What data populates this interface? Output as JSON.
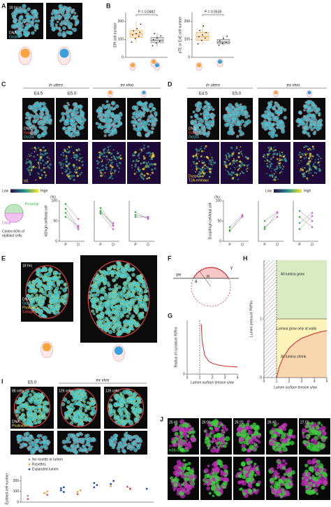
{
  "panels": {
    "A": {
      "label": "A",
      "time": "18 hrs",
      "stains": [
        "DNA",
        "Oct3/4"
      ]
    },
    "B": {
      "label": "B"
    },
    "C": {
      "label": "C",
      "groups": [
        "in utero",
        "ex vivo"
      ],
      "stages": [
        "E4.5",
        "E5.0"
      ],
      "stains": [
        "DNA",
        "Gata4",
        "Oct3/4"
      ],
      "reporter": [
        "Id1"
      ],
      "scale": [
        "Low",
        "High"
      ],
      "schematic": [
        "Proximal",
        "Distal",
        "Centre 60% of",
        "epiblast cells"
      ]
    },
    "D": {
      "label": "D",
      "groups": [
        "in utero",
        "ex vivo"
      ],
      "stages": [
        "E4.5",
        "E5.0"
      ],
      "stains": [
        "DNA",
        "Gata4",
        "Oct3/4"
      ],
      "reporter": [
        "Dusp4-",
        "T2A-mVenus"
      ],
      "scale": [
        "Low",
        "High"
      ]
    },
    "E": {
      "label": "E",
      "time": "18 hrs",
      "stains": [
        "DNA",
        "Oct3/4",
        "Phalloidin",
        "Collagen IV"
      ]
    },
    "F": {
      "label": "F",
      "symbols": [
        "γ",
        "γw",
        "θ",
        "R"
      ]
    },
    "G": {
      "label": "G"
    },
    "H": {
      "label": "H"
    },
    "I": {
      "label": "I",
      "stage": "E5.0",
      "group": "ex vivo",
      "counts": [
        "88 cells",
        "129 cells",
        "126 cells"
      ],
      "stains": [
        "DNA",
        "Phalloidin"
      ]
    },
    "J": {
      "label": "J",
      "times": [
        "25:40",
        "26:00",
        "26:20",
        "26:40",
        "27:00"
      ],
      "stains": [
        "mTmG",
        "H2B-GFP"
      ]
    }
  },
  "chart_data": [
    {
      "type": "box",
      "ylabel": "EPI cell number",
      "annotation": "P = 0.0482",
      "ylim": [
        0,
        250
      ],
      "yticks": [
        0,
        100,
        200
      ],
      "boxes": [
        {
          "color": "#f5a53c",
          "min": 80,
          "q1": 110,
          "median": 130,
          "q3": 150,
          "max": 200,
          "points": [
            85,
            105,
            118,
            125,
            132,
            140,
            148,
            160,
            185
          ]
        },
        {
          "color": "#777777",
          "min": 60,
          "q1": 82,
          "median": 95,
          "q3": 112,
          "max": 135,
          "points": [
            65,
            80,
            90,
            98,
            108,
            120,
            132
          ]
        }
      ]
    },
    {
      "type": "box",
      "ylabel": "pTE or ExE cell number",
      "annotation": "P = 0.0538",
      "ylim": [
        0,
        250
      ],
      "yticks": [
        0,
        100,
        200
      ],
      "boxes": [
        {
          "color": "#f5a53c",
          "min": 70,
          "q1": 95,
          "median": 115,
          "q3": 140,
          "max": 190,
          "points": [
            75,
            95,
            108,
            115,
            125,
            138,
            150,
            175
          ]
        },
        {
          "color": "#777777",
          "min": 65,
          "q1": 75,
          "median": 85,
          "q3": 100,
          "max": 120,
          "points": [
            68,
            78,
            84,
            92,
            105,
            118
          ]
        }
      ]
    },
    {
      "type": "paired",
      "ylabel": "Id1high cell/total cell",
      "unit": "(%)",
      "categories": [
        "P",
        "D"
      ],
      "colors": [
        "#3cb043",
        "#d65fd6"
      ],
      "ylim": [
        0,
        100
      ],
      "yticks": [
        0,
        50,
        100
      ],
      "groups": [
        {
          "pairs": [
            [
              92,
              55
            ],
            [
              80,
              35
            ],
            [
              70,
              30
            ],
            [
              60,
              38
            ]
          ]
        },
        {
          "pairs": [
            [
              82,
              40
            ],
            [
              75,
              38
            ],
            [
              72,
              45
            ],
            [
              68,
              30
            ]
          ]
        },
        {
          "pairs": [
            [
              72,
              55
            ],
            [
              65,
              58
            ],
            [
              60,
              60
            ]
          ]
        }
      ]
    },
    {
      "type": "paired",
      "ylabel": "Dusp4high cell/total cell",
      "unit": "(%)",
      "categories": [
        "P",
        "D"
      ],
      "colors": [
        "#3cb043",
        "#d65fd6"
      ],
      "ylim": [
        0,
        100
      ],
      "yticks": [
        0,
        50,
        100
      ],
      "groups": [
        {
          "pairs": [
            [
              25,
              62
            ],
            [
              28,
              60
            ],
            [
              35,
              65
            ]
          ]
        },
        {
          "pairs": [
            [
              30,
              70
            ],
            [
              35,
              60
            ],
            [
              50,
              72
            ]
          ]
        },
        {
          "pairs": [
            [
              60,
              35
            ],
            [
              45,
              70
            ],
            [
              30,
              62
            ],
            [
              75,
              50
            ]
          ]
        }
      ]
    },
    {
      "type": "line",
      "xlabel": "Lumen surface tension γ/γw",
      "ylabel": "Radius of curvature R/Rm",
      "color": "#d62728",
      "vline": 1,
      "xlim": [
        0,
        4
      ],
      "xticks": [
        0,
        1,
        2,
        3,
        4
      ],
      "ylim": [
        0,
        10
      ],
      "yticks": [
        0
      ],
      "x": [
        1.12,
        1.2,
        1.4,
        1.7,
        2,
        2.5,
        3,
        3.5,
        4
      ],
      "y": [
        9.3,
        6,
        3.5,
        2.43,
        2,
        1.67,
        1.5,
        1.4,
        1.33
      ]
    },
    {
      "type": "phase",
      "xlabel": "Lumen surface tension γ/γw",
      "ylabel": "Lumen pressure Pl/Plm",
      "color": "#d62728",
      "vline": 1,
      "threshold": 1,
      "xlim": [
        0,
        5
      ],
      "xticks": [
        0,
        1,
        2,
        3,
        4,
        5
      ],
      "ylim": [
        0,
        2
      ],
      "yticks": [
        0,
        1
      ],
      "x": [
        1,
        1.2,
        1.5,
        2,
        2.5,
        3,
        3.5,
        4,
        4.5,
        5
      ],
      "y": [
        0,
        0.17,
        0.33,
        0.5,
        0.6,
        0.67,
        0.71,
        0.75,
        0.78,
        0.8
      ],
      "regions": [
        {
          "label": "All lumina grow",
          "color": "#d9ebc3"
        },
        {
          "label": "Lumina grow only at walls",
          "color": "#fbf3b8"
        },
        {
          "label": "All lumina shrink",
          "color": "#f9d7ae"
        }
      ]
    },
    {
      "type": "scatter",
      "ylabel": "Epiblast cell number",
      "ylim": [
        0,
        250
      ],
      "yticks": [
        0,
        100,
        200
      ],
      "xlim": [
        0.5,
        8.5
      ],
      "series": [
        {
          "name": "No rosette or lumen",
          "color": "#999999",
          "marker": "circle",
          "x": [
            1
          ],
          "values": [
            60
          ]
        },
        {
          "name": "Rosettes",
          "color": "#f5a53c",
          "marker": "circle",
          "x": [
            2,
            2,
            4,
            4,
            6,
            7
          ],
          "values": [
            85,
            100,
            95,
            110,
            150,
            120
          ]
        },
        {
          "name": "Expanded lumen",
          "color": "#1f4fb5",
          "marker": "circle",
          "x": [
            3,
            3,
            3,
            3,
            5,
            5,
            5,
            6,
            6,
            8
          ],
          "values": [
            110,
            140,
            130,
            95,
            140,
            160,
            180,
            200,
            170,
            125
          ]
        },
        {
          "color": "#e03030",
          "marker": "triangle",
          "x": [
            1,
            2,
            4,
            7,
            7
          ],
          "values": [
            30,
            70,
            75,
            130,
            145
          ]
        }
      ]
    }
  ]
}
